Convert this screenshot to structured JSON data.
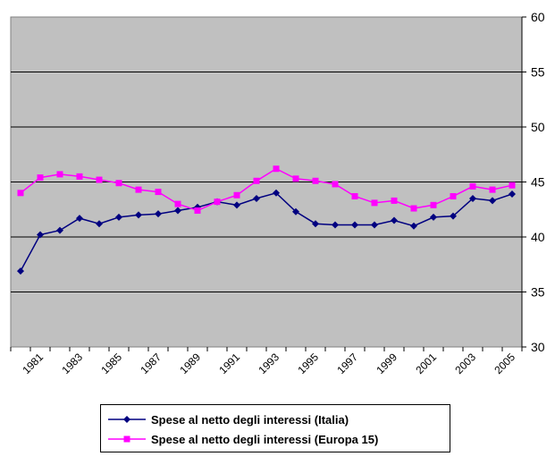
{
  "chart_data": {
    "type": "line",
    "title": "",
    "xlabel": "",
    "ylabel": "",
    "ylim": [
      30,
      60
    ],
    "yticks": [
      "30",
      "35",
      "40",
      "45",
      "50",
      "55",
      "60"
    ],
    "y_axis_side": "right",
    "grid": true,
    "background": "#c0c0c0",
    "x": [
      1980,
      1981,
      1982,
      1983,
      1984,
      1985,
      1986,
      1987,
      1988,
      1989,
      1990,
      1991,
      1992,
      1993,
      1994,
      1995,
      1996,
      1997,
      1998,
      1999,
      2000,
      2001,
      2002,
      2003,
      2004,
      2005
    ],
    "xticks": [
      "1981",
      "1983",
      "1985",
      "1987",
      "1989",
      "1991",
      "1993",
      "1995",
      "1997",
      "1999",
      "2001",
      "2003",
      "2005"
    ],
    "series": [
      {
        "name": "Spese al netto degli interessi (Italia)",
        "color": "#000080",
        "marker": "diamond",
        "values": [
          36.9,
          40.2,
          40.6,
          41.7,
          41.2,
          41.8,
          42.0,
          42.1,
          42.4,
          42.7,
          43.2,
          42.9,
          43.5,
          44.0,
          42.3,
          41.2,
          41.1,
          41.1,
          41.1,
          41.5,
          41.0,
          41.8,
          41.9,
          43.5,
          43.3,
          43.9
        ]
      },
      {
        "name": "Spese al netto degli interessi (Europa 15)",
        "color": "#ff00ff",
        "marker": "square",
        "values": [
          44.0,
          45.4,
          45.7,
          45.5,
          45.2,
          44.9,
          44.3,
          44.1,
          43.0,
          42.4,
          43.2,
          43.8,
          45.1,
          46.2,
          45.3,
          45.1,
          44.8,
          43.7,
          43.1,
          43.3,
          42.6,
          42.9,
          43.7,
          44.6,
          44.3,
          44.7
        ]
      }
    ],
    "legend": "bottom"
  }
}
